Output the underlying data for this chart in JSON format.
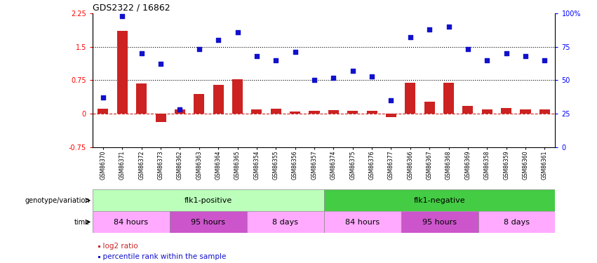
{
  "title": "GDS2322 / 16862",
  "samples": [
    "GSM86370",
    "GSM86371",
    "GSM86372",
    "GSM86373",
    "GSM86362",
    "GSM86363",
    "GSM86364",
    "GSM86365",
    "GSM86354",
    "GSM86355",
    "GSM86356",
    "GSM86357",
    "GSM86374",
    "GSM86375",
    "GSM86376",
    "GSM86377",
    "GSM86366",
    "GSM86367",
    "GSM86368",
    "GSM86369",
    "GSM86358",
    "GSM86359",
    "GSM86360",
    "GSM86361"
  ],
  "log2_ratio": [
    0.12,
    1.85,
    0.68,
    -0.18,
    0.1,
    0.44,
    0.65,
    0.77,
    0.1,
    0.12,
    0.05,
    0.07,
    0.08,
    0.06,
    0.06,
    -0.08,
    0.7,
    0.27,
    0.7,
    0.17,
    0.09,
    0.13,
    0.1,
    0.1
  ],
  "percentile": [
    37,
    98,
    70,
    62,
    28,
    73,
    80,
    86,
    68,
    65,
    71,
    50,
    52,
    57,
    53,
    35,
    82,
    88,
    90,
    73,
    65,
    70,
    68,
    65
  ],
  "genotype_groups": [
    {
      "label": "flk1-positive",
      "start": 0,
      "end": 12,
      "color": "#bbffbb"
    },
    {
      "label": "flk1-negative",
      "start": 12,
      "end": 24,
      "color": "#44cc44"
    }
  ],
  "time_groups": [
    {
      "label": "84 hours",
      "start": 0,
      "end": 4,
      "color": "#ffaaff"
    },
    {
      "label": "95 hours",
      "start": 4,
      "end": 8,
      "color": "#cc55cc"
    },
    {
      "label": "8 days",
      "start": 8,
      "end": 12,
      "color": "#ffaaff"
    },
    {
      "label": "84 hours",
      "start": 12,
      "end": 16,
      "color": "#ffaaff"
    },
    {
      "label": "95 hours",
      "start": 16,
      "end": 20,
      "color": "#cc55cc"
    },
    {
      "label": "8 days",
      "start": 20,
      "end": 24,
      "color": "#ffaaff"
    }
  ],
  "bar_color": "#cc2222",
  "dot_color": "#1111cc",
  "ylim_left": [
    -0.75,
    2.25
  ],
  "ylim_right": [
    0,
    100
  ],
  "yticks_left": [
    -0.75,
    0,
    0.75,
    1.5,
    2.25
  ],
  "yticks_right": [
    0,
    25,
    50,
    75,
    100
  ],
  "hlines_dotted": [
    0.75,
    1.5
  ],
  "legend_red": "log2 ratio",
  "legend_blue": "percentile rank within the sample"
}
